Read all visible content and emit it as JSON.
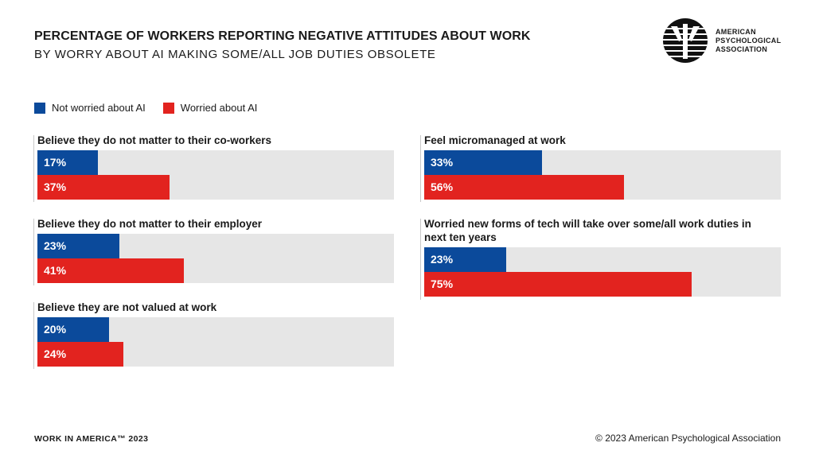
{
  "header": {
    "title": "PERCENTAGE OF WORKERS REPORTING NEGATIVE ATTITUDES ABOUT WORK",
    "subtitle": "BY WORRY ABOUT AI MAKING SOME/ALL JOB DUTIES OBSOLETE"
  },
  "logo": {
    "icon": "apa-psi-logo-icon",
    "line1": "AMERICAN",
    "line2": "PSYCHOLOGICAL",
    "line3": "ASSOCIATION"
  },
  "colors": {
    "not_worried": "#0b4a9b",
    "worried": "#e2231f",
    "track": "#e6e6e6"
  },
  "footer": {
    "left": "WORK IN AMERICA™ 2023",
    "right": "© 2023 American Psychological Association"
  },
  "chart_data": {
    "type": "bar",
    "orientation": "horizontal",
    "title": "PERCENTAGE OF WORKERS REPORTING NEGATIVE ATTITUDES ABOUT WORK",
    "subtitle": "BY WORRY ABOUT AI MAKING SOME/ALL JOB DUTIES OBSOLETE",
    "xlim": [
      0,
      100
    ],
    "unit": "%",
    "legend": {
      "placement": "top-left",
      "entries": [
        "Not worried about AI",
        "Worried about AI"
      ]
    },
    "categories": [
      "Believe they do not matter to their co-workers",
      "Believe they do not matter to their employer",
      "Believe they are not valued at work",
      "Feel micromanaged at work",
      "Worried new forms of tech will take over some/all work duties in next ten years"
    ],
    "series": [
      {
        "name": "Not worried about AI",
        "values": [
          17,
          23,
          20,
          33,
          23
        ],
        "labels": [
          "17%",
          "23%",
          "20%",
          "33%",
          "23%"
        ]
      },
      {
        "name": "Worried about AI",
        "values": [
          37,
          41,
          24,
          56,
          75
        ],
        "labels": [
          "37%",
          "41%",
          "24%",
          "56%",
          "75%"
        ]
      }
    ]
  }
}
